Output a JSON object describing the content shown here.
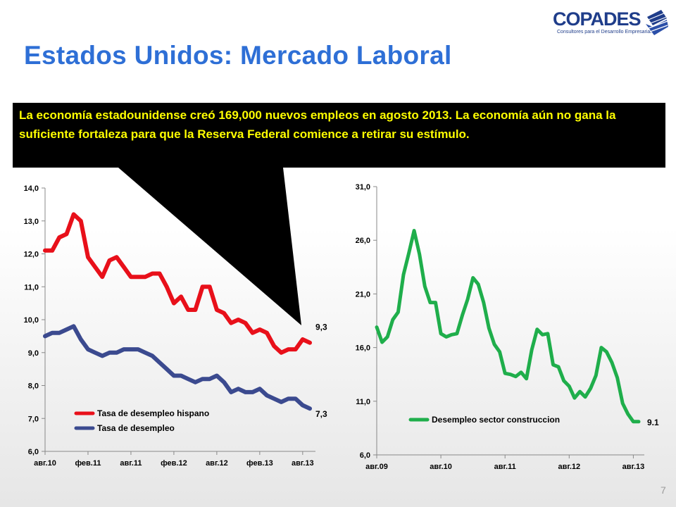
{
  "header": {
    "title": "Estados Unidos: Mercado Laboral",
    "logo_text": "COPADES",
    "logo_tagline": "Consultores para el Desarrollo Empresarial"
  },
  "callout": {
    "text": "La economía estadounidense creó 169,000 nuevos empleos en agosto 2013. La economía aún no gana la suficiente fortaleza para que la Reserva Federal comience a retirar su estímulo."
  },
  "page_number": "7",
  "colors": {
    "title": "#2e6fd6",
    "hispanic": "#e8101a",
    "total": "#3b4a8f",
    "construction": "#1fae4b",
    "callout_bg": "#000000",
    "callout_text": "#ffff00"
  },
  "chart_data": [
    {
      "type": "line",
      "ylim": [
        6,
        14
      ],
      "yticks": [
        "6,0",
        "7,0",
        "8,0",
        "9,0",
        "10,0",
        "11,0",
        "12,0",
        "13,0",
        "14,0"
      ],
      "x_tick_labels": [
        "авг.10",
        "фев.11",
        "авг.11",
        "фев.12",
        "авг.12",
        "фев.13",
        "авг.13"
      ],
      "x_tick_index": [
        0,
        6,
        12,
        18,
        24,
        30,
        36
      ],
      "legend_position": "bottom-left",
      "series": [
        {
          "name": "Tasa de desempleo hispano",
          "color": "#e8101a",
          "values": [
            12.1,
            12.1,
            12.5,
            12.6,
            13.2,
            13.0,
            11.9,
            11.6,
            11.3,
            11.8,
            11.9,
            11.6,
            11.3,
            11.3,
            11.3,
            11.4,
            11.4,
            11.0,
            10.5,
            10.7,
            10.3,
            10.3,
            11.0,
            11.0,
            10.3,
            10.2,
            9.9,
            10.0,
            9.9,
            9.6,
            9.7,
            9.6,
            9.2,
            9.0,
            9.1,
            9.1,
            9.4,
            9.3
          ],
          "end_label": "9,3"
        },
        {
          "name": "Tasa de desempleo",
          "color": "#3b4a8f",
          "values": [
            9.5,
            9.6,
            9.6,
            9.7,
            9.8,
            9.4,
            9.1,
            9.0,
            8.9,
            9.0,
            9.0,
            9.1,
            9.1,
            9.1,
            9.0,
            8.9,
            8.7,
            8.5,
            8.3,
            8.3,
            8.2,
            8.1,
            8.2,
            8.2,
            8.3,
            8.1,
            7.8,
            7.9,
            7.8,
            7.8,
            7.9,
            7.7,
            7.6,
            7.5,
            7.6,
            7.6,
            7.4,
            7.3
          ],
          "end_label": "7,3"
        }
      ]
    },
    {
      "type": "line",
      "ylim": [
        6,
        31
      ],
      "yticks": [
        "6,0",
        "11,0",
        "16,0",
        "21,0",
        "26,0",
        "31,0"
      ],
      "x_tick_labels": [
        "авг.09",
        "авг.10",
        "авг.11",
        "авг.12",
        "авг.13"
      ],
      "x_tick_index": [
        0,
        12,
        24,
        36,
        48
      ],
      "legend_position": "bottom",
      "series": [
        {
          "name": "Desempleo sector construccion",
          "color": "#1fae4b",
          "values": [
            17.9,
            16.5,
            17.0,
            18.6,
            19.3,
            22.8,
            24.8,
            26.9,
            24.7,
            21.7,
            20.2,
            20.2,
            17.3,
            17.0,
            17.2,
            17.3,
            19.0,
            20.5,
            22.5,
            21.9,
            20.2,
            17.8,
            16.3,
            15.6,
            13.6,
            13.5,
            13.3,
            13.7,
            13.1,
            15.8,
            17.7,
            17.2,
            17.3,
            14.4,
            14.2,
            12.9,
            12.4,
            11.3,
            11.9,
            11.4,
            12.2,
            13.4,
            16.0,
            15.6,
            14.6,
            13.2,
            10.8,
            9.8,
            9.1,
            9.1
          ],
          "end_label": "9.1"
        }
      ]
    }
  ]
}
